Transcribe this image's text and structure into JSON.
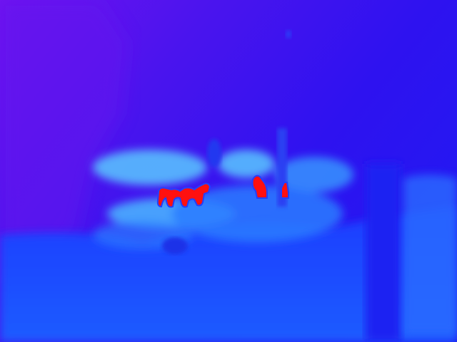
{
  "image": {
    "kind": "thermal-camera-frame",
    "palette": {
      "cold_sky_violet": "#6a10f0",
      "cold_deep_blue": "#2a12f0",
      "mid_blue": "#1a3cff",
      "warm_cyan": "#3aa0ff",
      "light_cyan": "#6ad8ff",
      "hot_red": "#ff1010"
    },
    "regions": [
      {
        "name": "background-sky"
      },
      {
        "name": "left-tree-mass"
      },
      {
        "name": "center-pole"
      },
      {
        "name": "right-tree-trunk"
      },
      {
        "name": "warm-bushes-band"
      },
      {
        "name": "ground-foreground"
      }
    ],
    "hot_spots": [
      {
        "name": "animal-group-left"
      },
      {
        "name": "animal-center"
      },
      {
        "name": "animal-right-small"
      }
    ]
  }
}
